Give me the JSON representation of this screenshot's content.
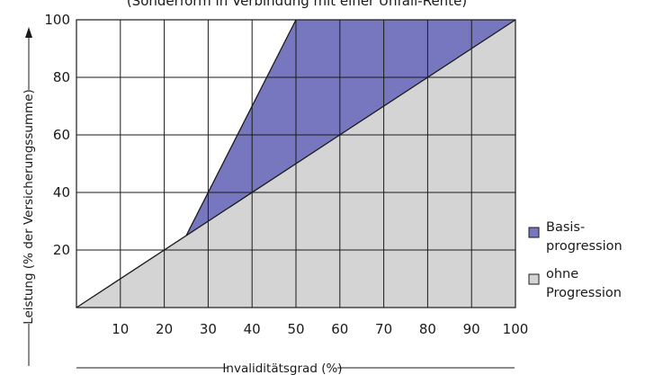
{
  "chart_data": {
    "type": "area",
    "title": "(Sonderform in Verbindung mit einer Unfall-Rente)",
    "xlabel": "Invaliditätsgrad (%)",
    "ylabel": "Leistung (% der Versicherungssumme)",
    "xlim": [
      0,
      100
    ],
    "ylim": [
      0,
      100
    ],
    "x_ticks": [
      "10",
      "20",
      "30",
      "40",
      "50",
      "60",
      "70",
      "80",
      "90",
      "100"
    ],
    "y_ticks": [
      "20",
      "40",
      "60",
      "80",
      "100"
    ],
    "grid": true,
    "legend_position": "right",
    "series": [
      {
        "name": "Basis-progression",
        "legend_lines": [
          "Basis-",
          "progression"
        ],
        "color": "#7777bf",
        "points": [
          [
            25,
            25
          ],
          [
            50,
            100
          ],
          [
            100,
            100
          ],
          [
            25,
            25
          ]
        ]
      },
      {
        "name": "ohne Progression",
        "legend_lines": [
          "ohne",
          "Progression"
        ],
        "color": "#d4d4d4",
        "points": [
          [
            0,
            0
          ],
          [
            100,
            100
          ],
          [
            100,
            0
          ],
          [
            0,
            0
          ]
        ]
      }
    ]
  }
}
